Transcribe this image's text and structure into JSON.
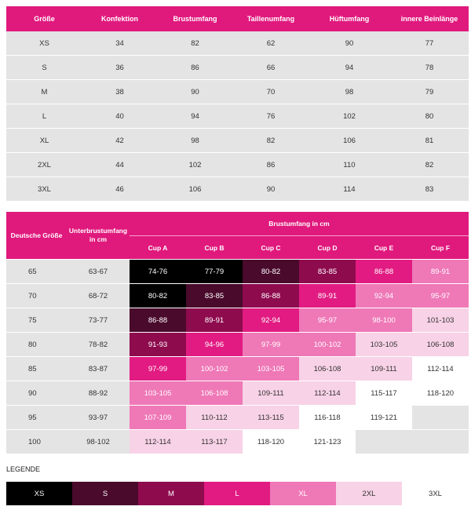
{
  "size_table": {
    "headers": [
      "Größe",
      "Konfektion",
      "Brustumfang",
      "Taillenumfang",
      "Hüftumfang",
      "innere Beinlänge"
    ],
    "rows": [
      [
        "XS",
        "34",
        "82",
        "62",
        "90",
        "77"
      ],
      [
        "S",
        "36",
        "86",
        "66",
        "94",
        "78"
      ],
      [
        "M",
        "38",
        "90",
        "70",
        "98",
        "79"
      ],
      [
        "L",
        "40",
        "94",
        "76",
        "102",
        "80"
      ],
      [
        "XL",
        "42",
        "98",
        "82",
        "106",
        "81"
      ],
      [
        "2XL",
        "44",
        "102",
        "86",
        "110",
        "82"
      ],
      [
        "3XL",
        "46",
        "106",
        "90",
        "114",
        "83"
      ]
    ]
  },
  "bra_table": {
    "header_deutsche": "Deutsche Größe",
    "header_unterbrust": "Unterbrustumfang in cm",
    "header_brust": "Brustumfang in cm",
    "cups": [
      "Cup A",
      "Cup B",
      "Cup C",
      "Cup D",
      "Cup E",
      "Cup F"
    ],
    "rows": [
      {
        "de": "65",
        "unter": "63-67",
        "cells": [
          {
            "v": "74-76",
            "s": "XS"
          },
          {
            "v": "77-79",
            "s": "XS"
          },
          {
            "v": "80-82",
            "s": "S"
          },
          {
            "v": "83-85",
            "s": "M"
          },
          {
            "v": "86-88",
            "s": "L"
          },
          {
            "v": "89-91",
            "s": "XL"
          }
        ]
      },
      {
        "de": "70",
        "unter": "68-72",
        "cells": [
          {
            "v": "80-82",
            "s": "XS"
          },
          {
            "v": "83-85",
            "s": "S"
          },
          {
            "v": "86-88",
            "s": "M"
          },
          {
            "v": "89-91",
            "s": "L"
          },
          {
            "v": "92-94",
            "s": "XL"
          },
          {
            "v": "95-97",
            "s": "XL"
          }
        ]
      },
      {
        "de": "75",
        "unter": "73-77",
        "cells": [
          {
            "v": "86-88",
            "s": "S"
          },
          {
            "v": "89-91",
            "s": "M"
          },
          {
            "v": "92-94",
            "s": "L"
          },
          {
            "v": "95-97",
            "s": "XL"
          },
          {
            "v": "98-100",
            "s": "XL"
          },
          {
            "v": "101-103",
            "s": "2XL"
          }
        ]
      },
      {
        "de": "80",
        "unter": "78-82",
        "cells": [
          {
            "v": "91-93",
            "s": "M"
          },
          {
            "v": "94-96",
            "s": "L"
          },
          {
            "v": "97-99",
            "s": "XL"
          },
          {
            "v": "100-102",
            "s": "XL"
          },
          {
            "v": "103-105",
            "s": "2XL"
          },
          {
            "v": "106-108",
            "s": "2XL"
          }
        ]
      },
      {
        "de": "85",
        "unter": "83-87",
        "cells": [
          {
            "v": "97-99",
            "s": "L"
          },
          {
            "v": "100-102",
            "s": "XL"
          },
          {
            "v": "103-105",
            "s": "XL"
          },
          {
            "v": "106-108",
            "s": "2XL"
          },
          {
            "v": "109-111",
            "s": "2XL"
          },
          {
            "v": "112-114",
            "s": "3XL"
          }
        ]
      },
      {
        "de": "90",
        "unter": "88-92",
        "cells": [
          {
            "v": "103-105",
            "s": "XL"
          },
          {
            "v": "106-108",
            "s": "XL"
          },
          {
            "v": "109-111",
            "s": "2XL"
          },
          {
            "v": "112-114",
            "s": "2XL"
          },
          {
            "v": "115-117",
            "s": "3XL"
          },
          {
            "v": "118-120",
            "s": "3XL"
          }
        ]
      },
      {
        "de": "95",
        "unter": "93-97",
        "cells": [
          {
            "v": "107-109",
            "s": "XL"
          },
          {
            "v": "110-112",
            "s": "2XL"
          },
          {
            "v": "113-115",
            "s": "2XL"
          },
          {
            "v": "116-118",
            "s": "3XL"
          },
          {
            "v": "119-121",
            "s": "3XL"
          },
          {
            "v": "",
            "s": "none"
          }
        ]
      },
      {
        "de": "100",
        "unter": "98-102",
        "cells": [
          {
            "v": "112-114",
            "s": "2XL"
          },
          {
            "v": "113-117",
            "s": "2XL"
          },
          {
            "v": "118-120",
            "s": "3XL"
          },
          {
            "v": "121-123",
            "s": "3XL"
          },
          {
            "v": "",
            "s": "none"
          },
          {
            "v": "",
            "s": "none"
          }
        ]
      }
    ]
  },
  "legend": {
    "title": "LEGENDE",
    "items": [
      {
        "label": "XS",
        "s": "XS"
      },
      {
        "label": "S",
        "s": "S"
      },
      {
        "label": "M",
        "s": "M"
      },
      {
        "label": "L",
        "s": "L"
      },
      {
        "label": "XL",
        "s": "XL"
      },
      {
        "label": "2XL",
        "s": "2XL"
      },
      {
        "label": "3XL",
        "s": "3XL"
      }
    ]
  },
  "colors": {
    "accent": "#e0197d",
    "row_gray": "#e4e4e4",
    "XS": "#000000",
    "S": "#4a0a2c",
    "M": "#8e0b4e",
    "L": "#e21b82",
    "XL": "#ef78b7",
    "2XL": "#f8d2e6",
    "3XL": "#ffffff"
  }
}
